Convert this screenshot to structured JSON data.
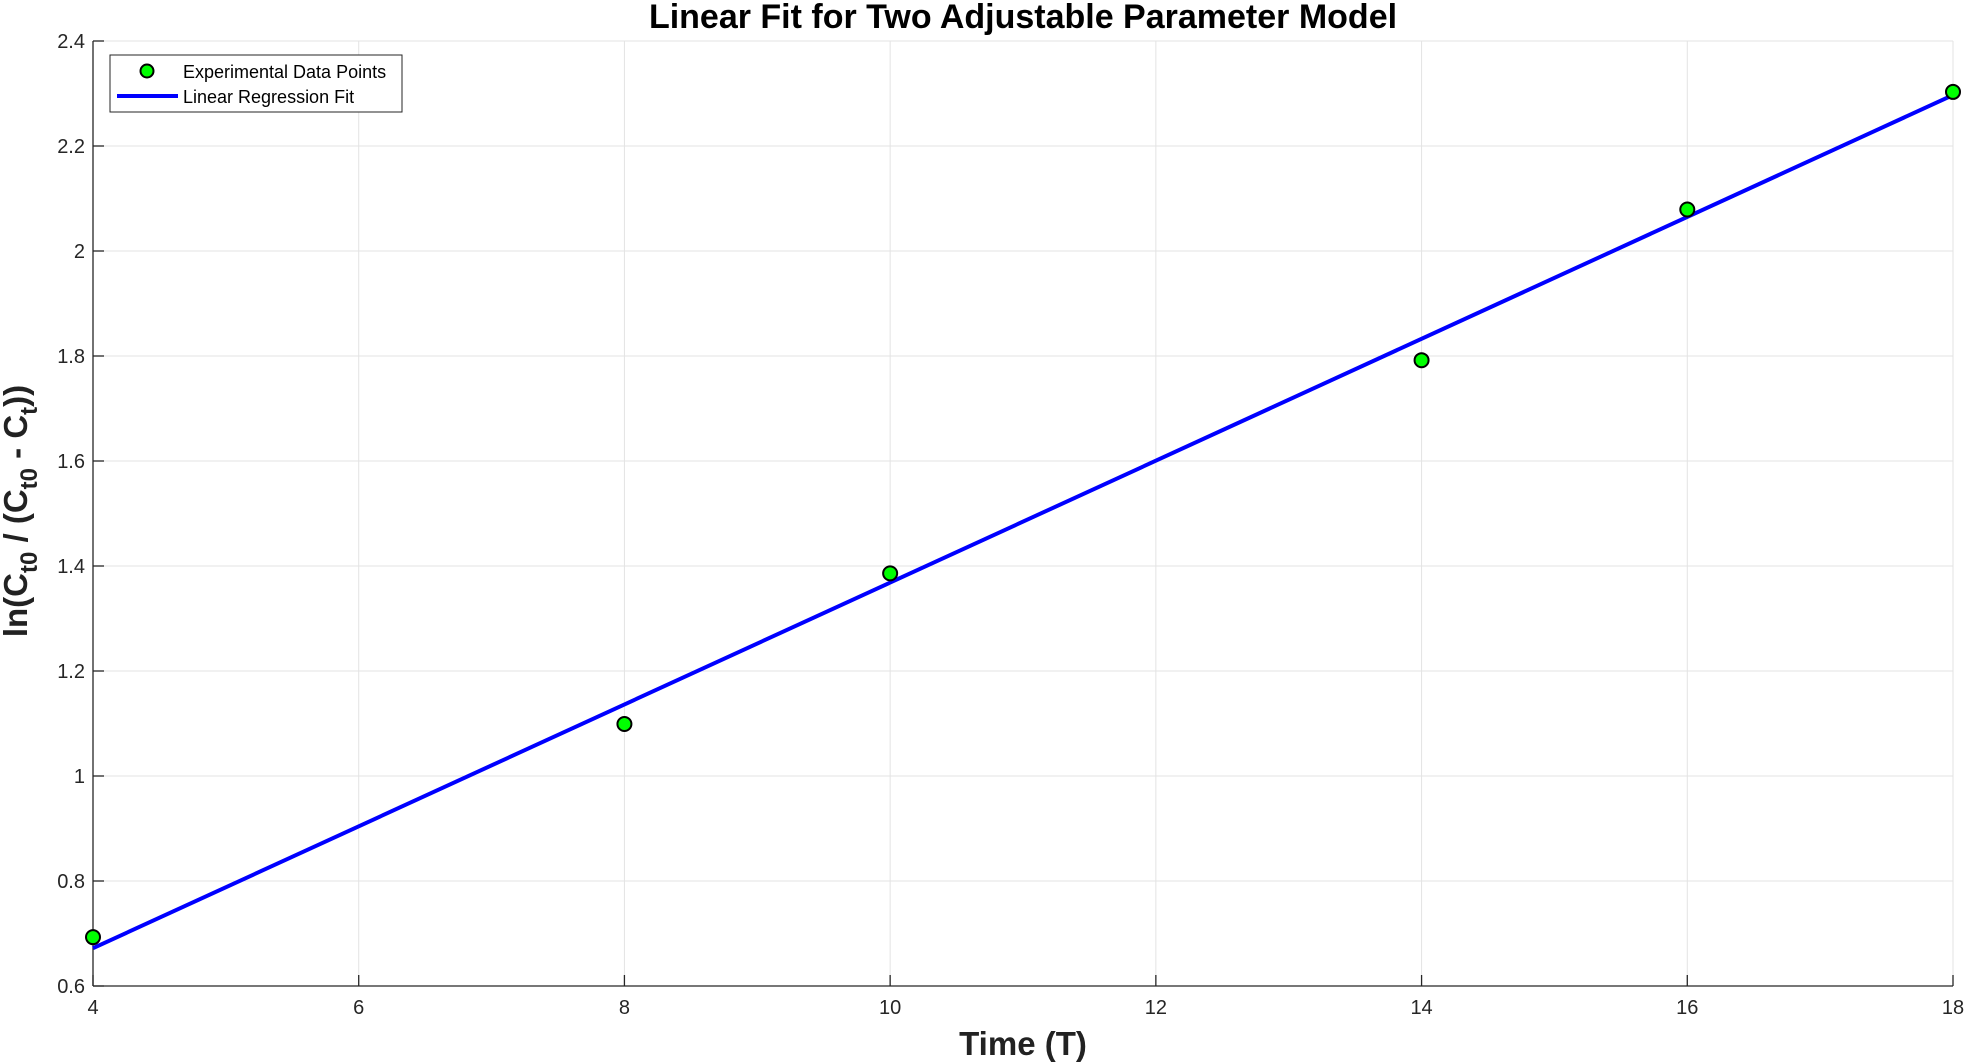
{
  "chart_data": {
    "type": "scatter",
    "title": "Linear Fit for Two Adjustable Parameter Model",
    "xlabel": "Time (T)",
    "ylabel": {
      "prefix": "ln(C",
      "sub1": "t0",
      "mid": " / (C",
      "sub2": "t0",
      "mid2": " - C",
      "sub3": "t",
      "suffix": "))"
    },
    "xlim": [
      4,
      18
    ],
    "ylim": [
      0.6,
      2.4
    ],
    "xticks": [
      4,
      6,
      8,
      10,
      12,
      14,
      16,
      18
    ],
    "yticks": [
      0.6,
      0.8,
      1,
      1.2,
      1.4,
      1.6,
      1.8,
      2,
      2.2,
      2.4
    ],
    "grid": true,
    "legend_position": "top-left",
    "series": [
      {
        "name": "Experimental Data Points",
        "kind": "scatter",
        "color": "#00ff00",
        "edge_color": "#000000",
        "x": [
          4,
          8,
          10,
          14,
          16,
          18
        ],
        "y": [
          0.693,
          1.099,
          1.386,
          1.792,
          2.079,
          2.303
        ]
      },
      {
        "name": "Linear Regression Fit",
        "kind": "line",
        "color": "#0000ff",
        "x": [
          4,
          18
        ],
        "y": [
          0.672,
          2.297
        ]
      }
    ]
  }
}
